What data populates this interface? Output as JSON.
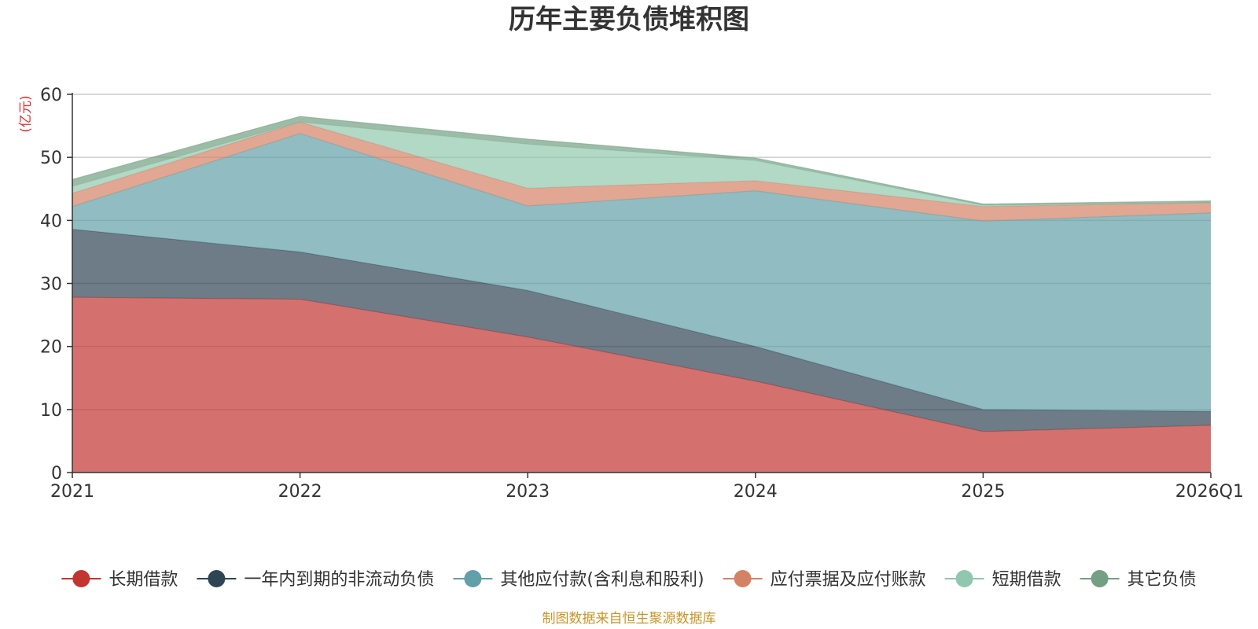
{
  "chart_data": {
    "type": "area",
    "stacked": true,
    "title": "历年主要负债堆积图",
    "unit_label": "(亿元)",
    "categories": [
      "2021",
      "2022",
      "2023",
      "2024",
      "2025",
      "2026Q1"
    ],
    "y_ticks": [
      "0",
      "10",
      "20",
      "30",
      "40",
      "50",
      "60"
    ],
    "ylim": [
      0,
      60
    ],
    "grid": true,
    "legend_position": "bottom",
    "series": [
      {
        "name": "长期借款",
        "color": "#c23531",
        "values": [
          27.8,
          27.5,
          21.5,
          14.5,
          6.5,
          7.5
        ]
      },
      {
        "name": "一年内到期的非流动负债",
        "color": "#2f4554",
        "values": [
          10.8,
          7.5,
          7.4,
          5.5,
          3.5,
          2.2
        ]
      },
      {
        "name": "其他应付款(含利息和股利)",
        "color": "#61a0a8",
        "values": [
          3.6,
          18.8,
          13.4,
          24.7,
          29.9,
          31.5
        ]
      },
      {
        "name": "应付票据及应付账款",
        "color": "#d48265",
        "values": [
          2.1,
          1.8,
          2.8,
          1.6,
          2.3,
          1.6
        ]
      },
      {
        "name": "短期借款",
        "color": "#91c7ae",
        "values": [
          1.1,
          0.0,
          7.0,
          3.2,
          0.2,
          0.0
        ]
      },
      {
        "name": "其它负债",
        "color": "#749f83",
        "values": [
          1.1,
          0.9,
          0.8,
          0.4,
          0.2,
          0.3
        ]
      }
    ],
    "source_note": "制图数据来自恒生聚源数据库"
  }
}
